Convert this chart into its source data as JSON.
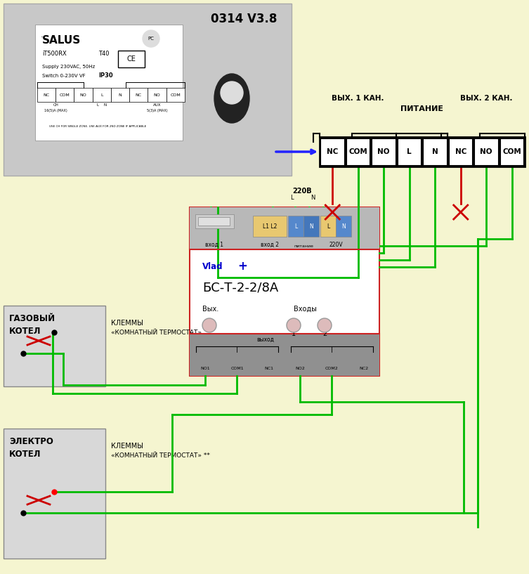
{
  "bg_color": "#f5f5d0",
  "terminal_block_labels": [
    "NC",
    "COM",
    "NO",
    "L",
    "N",
    "NC",
    "NO",
    "COM"
  ],
  "vykh1_label": "ВЫХ. 1 КАН.",
  "vykh2_label": "ВЫХ. 2 КАН.",
  "pitanie_label": "ПИТАНИЕ",
  "device_name": "БС-Т-2-2/8А",
  "boiler1_label1": "ГАЗОВЫЙ",
  "boiler1_label2": "КОТЕЛ",
  "klemmy1_label1": "КЛЕММЫ",
  "klemmy1_label2": "«КОМНАТНЫЙ ТЕРМОСТАТ»",
  "boiler2_label1": "ЭЛЕКТРО",
  "boiler2_label2": "КОТЕЛ",
  "klemmy2_label1": "КЛЕММЫ",
  "klemmy2_label2": "«КОМНАТНЫЙ ТЕРМОСТАТ» **",
  "green_wire_color": "#00bb00",
  "red_wire_color": "#cc0000",
  "blue_arrow_color": "#2222ff",
  "salus_version": "0314 V3.8",
  "label_220v": "220В",
  "vhod1_label": "вход 1",
  "vhod2_label": "вход 2",
  "pitanie_label2": "питание",
  "label_220V2": "220V",
  "bot_labels": [
    "NO1",
    "COM1",
    "NC1",
    "NO2",
    "COM2",
    "NC2"
  ],
  "vykh_label": "Вых.",
  "vhody_label": "Входы"
}
